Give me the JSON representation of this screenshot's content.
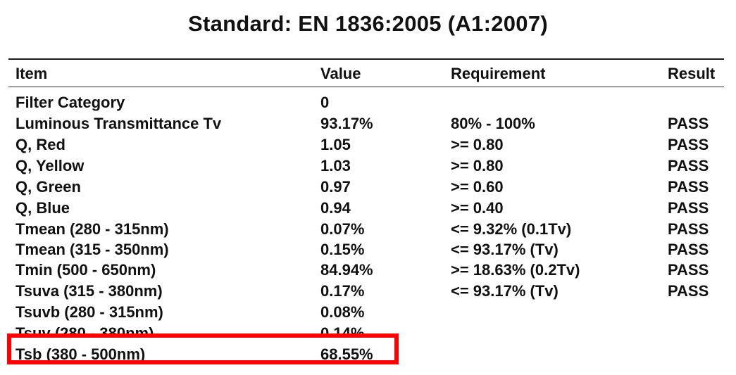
{
  "title": "Standard: EN 1836:2005 (A1:2007)",
  "columns": {
    "item": "Item",
    "value": "Value",
    "requirement": "Requirement",
    "result": "Result"
  },
  "rows": [
    {
      "item": "Filter Category",
      "value": "0",
      "requirement": "",
      "result": ""
    },
    {
      "item": "Luminous Transmittance Tv",
      "value": "93.17%",
      "requirement": "80% - 100%",
      "result": "PASS"
    },
    {
      "item": "Q, Red",
      "value": "1.05",
      "requirement": ">= 0.80",
      "result": "PASS"
    },
    {
      "item": "Q, Yellow",
      "value": "1.03",
      "requirement": ">= 0.80",
      "result": "PASS"
    },
    {
      "item": "Q, Green",
      "value": "0.97",
      "requirement": ">= 0.60",
      "result": "PASS"
    },
    {
      "item": "Q, Blue",
      "value": "0.94",
      "requirement": ">= 0.40",
      "result": "PASS"
    },
    {
      "item": "Tmean (280 - 315nm)",
      "value": "0.07%",
      "requirement": "<= 9.32% (0.1Tv)",
      "result": "PASS"
    },
    {
      "item": "Tmean (315 - 350nm)",
      "value": "0.15%",
      "requirement": "<= 93.17% (Tv)",
      "result": "PASS"
    },
    {
      "item": "Tmin (500 - 650nm)",
      "value": "84.94%",
      "requirement": ">= 18.63% (0.2Tv)",
      "result": "PASS"
    },
    {
      "item": "Tsuva (315 - 380nm)",
      "value": "0.17%",
      "requirement": "<= 93.17% (Tv)",
      "result": "PASS"
    },
    {
      "item": "Tsuvb (280 - 315nm)",
      "value": "0.08%",
      "requirement": "",
      "result": ""
    },
    {
      "item": "Tsuv (280 - 380nm)",
      "value": "0.14%",
      "requirement": "",
      "result": ""
    },
    {
      "item": "Tsb (380 - 500nm)",
      "value": "68.55%",
      "requirement": "",
      "result": ""
    }
  ],
  "highlight_color": "#ff0000"
}
